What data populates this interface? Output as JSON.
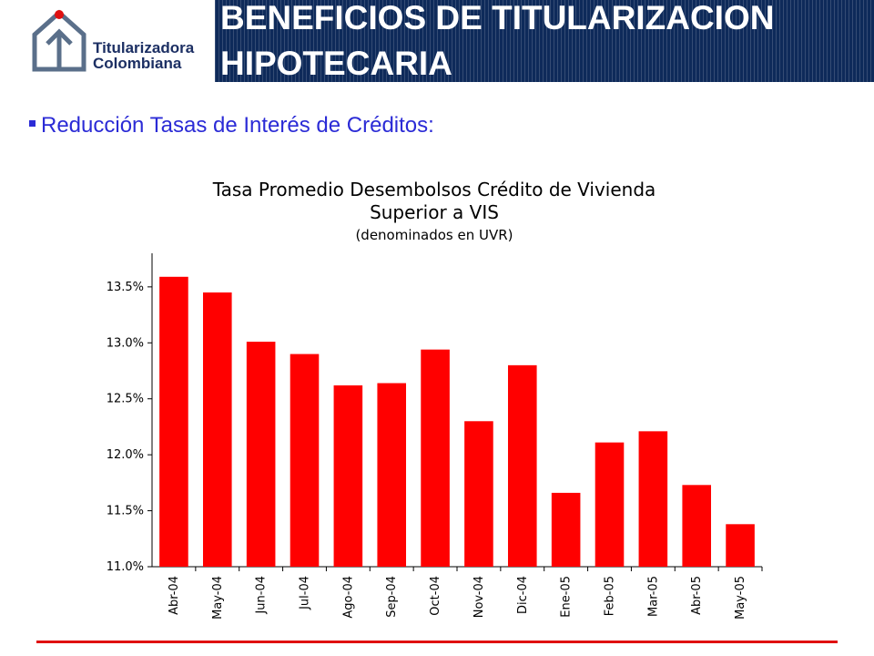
{
  "logo": {
    "line1": "Titularizadora",
    "line2": "Colombiana"
  },
  "header": {
    "title_line1": "BENEFICIOS DE TITULARIZACION",
    "title_line2": "HIPOTECARIA"
  },
  "subtitle": "Reducción Tasas de Interés de Créditos:",
  "colors": {
    "header_bg": "#0e2a5a",
    "bar": "#ff0000",
    "subtitle": "#2b2bd6",
    "rule": "#e01010"
  },
  "chart_data": {
    "type": "bar",
    "title_lines": [
      "Tasa Promedio Desembolsos Crédito de Vivienda",
      "Superior a VIS"
    ],
    "subtitle": "(denominados en UVR)",
    "xlabel": "",
    "ylabel": "",
    "categories": [
      "Abr-04",
      "May-04",
      "Jun-04",
      "Jul-04",
      "Ago-04",
      "Sep-04",
      "Oct-04",
      "Nov-04",
      "Dic-04",
      "Ene-05",
      "Feb-05",
      "Mar-05",
      "Abr-05",
      "May-05"
    ],
    "values": [
      13.59,
      13.45,
      13.01,
      12.9,
      12.62,
      12.64,
      12.94,
      12.3,
      12.8,
      11.66,
      12.11,
      12.21,
      11.73,
      11.38
    ],
    "ylim": [
      11.0,
      13.8
    ],
    "yticks": [
      11.0,
      11.5,
      12.0,
      12.5,
      13.0,
      13.5
    ],
    "ytick_labels": [
      "11.0%",
      "11.5%",
      "12.0%",
      "12.5%",
      "13.0%",
      "13.5%"
    ],
    "grid": false,
    "legend": "none"
  }
}
